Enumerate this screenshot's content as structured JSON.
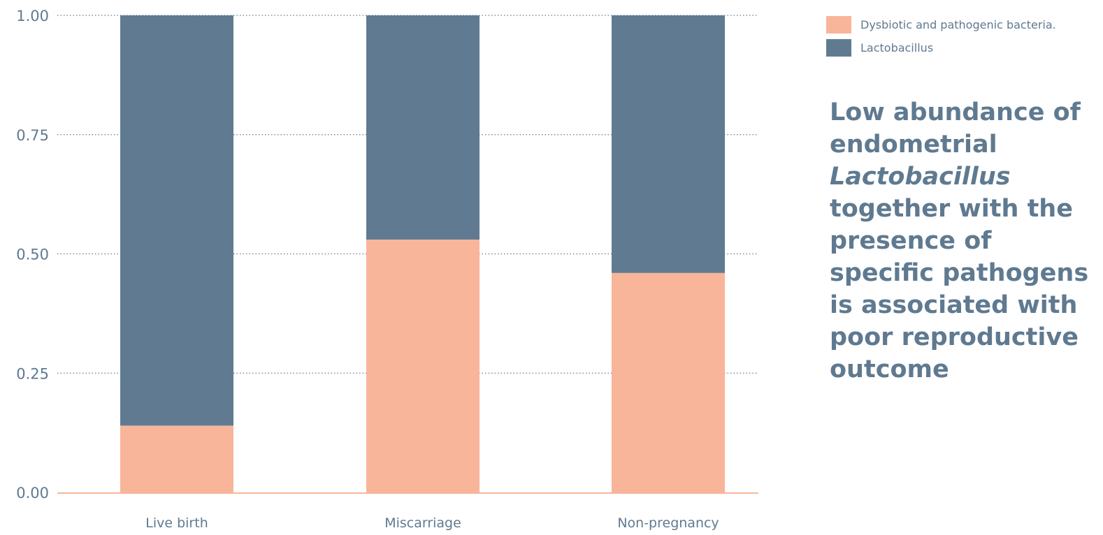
{
  "colors": {
    "dysbiotic": "#f8b599",
    "lactobacillus": "#607b91",
    "text": "#5f7a90",
    "grid": "#5f7a90",
    "baseline": "#f8b599"
  },
  "chart_data": {
    "type": "bar",
    "stacked": true,
    "categories": [
      "Live birth",
      "Miscarriage",
      "Non-pregnancy"
    ],
    "series": [
      {
        "name": "Dysbiotic and pathogenic bacteria.",
        "values": [
          0.14,
          0.53,
          0.46
        ]
      },
      {
        "name": "Lactobacillus",
        "values": [
          0.86,
          0.47,
          0.54
        ]
      }
    ],
    "ylim": [
      0,
      1
    ],
    "yticks": [
      "0.00",
      "0.25",
      "0.50",
      "0.75",
      "1.00"
    ],
    "grid": "horizontal dotted",
    "legend": "top-right",
    "xlabel": "",
    "ylabel": ""
  },
  "legend": {
    "items": [
      {
        "label": "Dysbiotic and pathogenic bacteria.",
        "icon": "square-swatch"
      },
      {
        "label": "Lactobacillus",
        "icon": "square-swatch"
      }
    ]
  },
  "headline": {
    "part1": "Low abundance of endometrial ",
    "emphasis": "Lactobacillus",
    "part2": " together with the presence of specific pathogens is associated with poor reproductive outcome"
  }
}
